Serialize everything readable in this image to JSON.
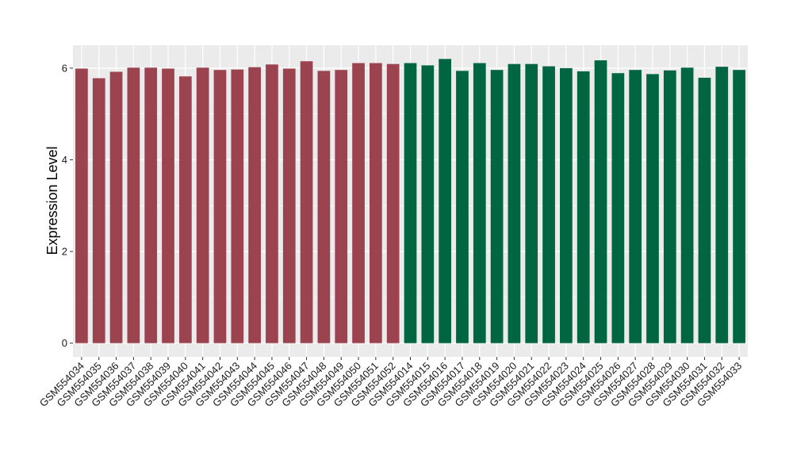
{
  "chart_data": {
    "type": "bar",
    "title": "",
    "xlabel": "",
    "ylabel": "Expression Level",
    "ylim": [
      -0.3,
      6.5
    ],
    "yticks": [
      0,
      2,
      4,
      6
    ],
    "grid": true,
    "legend": "none",
    "colors": {
      "group_a": "#9b4450",
      "group_b": "#006642",
      "panel_bg": "#ebebeb",
      "grid": "#ffffff"
    },
    "categories": [
      "GSM554034",
      "GSM554035",
      "GSM554036",
      "GSM554037",
      "GSM554038",
      "GSM554039",
      "GSM554040",
      "GSM554041",
      "GSM554042",
      "GSM554043",
      "GSM554044",
      "GSM554045",
      "GSM554046",
      "GSM554047",
      "GSM554048",
      "GSM554049",
      "GSM554050",
      "GSM554051",
      "GSM554052",
      "GSM554014",
      "GSM554015",
      "GSM554016",
      "GSM554017",
      "GSM554018",
      "GSM554019",
      "GSM554020",
      "GSM554021",
      "GSM554022",
      "GSM554023",
      "GSM554024",
      "GSM554025",
      "GSM554026",
      "GSM554027",
      "GSM554028",
      "GSM554029",
      "GSM554030",
      "GSM554031",
      "GSM554032",
      "GSM554033"
    ],
    "values": [
      5.99,
      5.78,
      5.92,
      6.01,
      6.01,
      5.99,
      5.82,
      6.01,
      5.96,
      5.97,
      6.02,
      6.08,
      5.99,
      6.15,
      5.94,
      5.96,
      6.11,
      6.11,
      6.09,
      6.11,
      6.06,
      6.2,
      5.94,
      6.11,
      5.96,
      6.09,
      6.09,
      6.04,
      6.0,
      5.93,
      6.17,
      5.89,
      5.96,
      5.87,
      5.95,
      6.01,
      5.79,
      6.03,
      5.96
    ],
    "groups": [
      "a",
      "a",
      "a",
      "a",
      "a",
      "a",
      "a",
      "a",
      "a",
      "a",
      "a",
      "a",
      "a",
      "a",
      "a",
      "a",
      "a",
      "a",
      "a",
      "b",
      "b",
      "b",
      "b",
      "b",
      "b",
      "b",
      "b",
      "b",
      "b",
      "b",
      "b",
      "b",
      "b",
      "b",
      "b",
      "b",
      "b",
      "b",
      "b"
    ]
  }
}
